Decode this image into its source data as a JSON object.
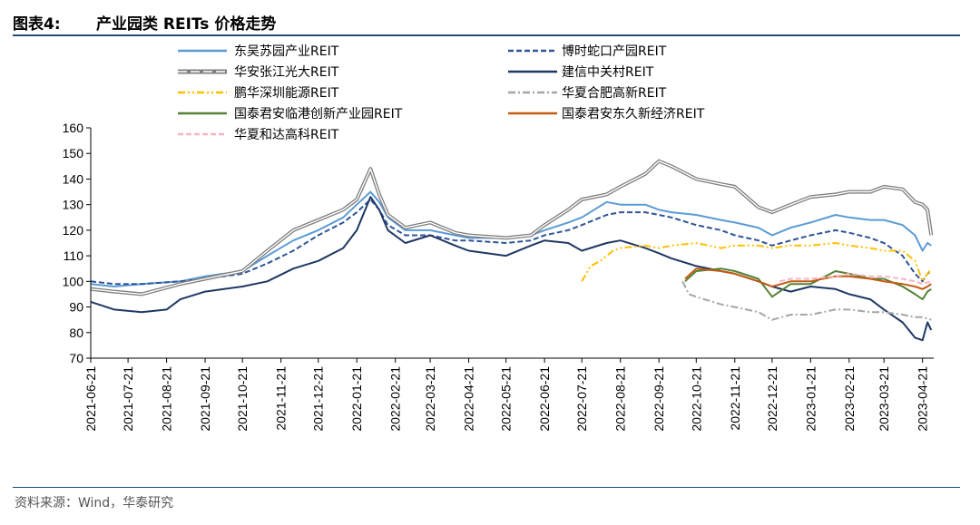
{
  "header": {
    "figure_label": "图表4:",
    "title": "产业园类 REITs 价格走势"
  },
  "footer": {
    "source": "资料来源：Wind，华泰研究"
  },
  "chart_data": {
    "type": "line",
    "ylim": [
      70,
      160
    ],
    "yticks": [
      70,
      80,
      90,
      100,
      110,
      120,
      130,
      140,
      150,
      160
    ],
    "xlim": [
      "2021-06-21",
      "2023-04-30"
    ],
    "xticks": [
      "2021-06-21",
      "2021-07-21",
      "2021-08-21",
      "2021-09-21",
      "2021-10-21",
      "2021-11-21",
      "2021-12-21",
      "2022-01-21",
      "2022-02-21",
      "2022-03-21",
      "2022-04-21",
      "2022-05-21",
      "2022-06-21",
      "2022-07-21",
      "2022-08-21",
      "2022-09-21",
      "2022-10-21",
      "2022-11-21",
      "2022-12-21",
      "2023-01-21",
      "2023-02-21",
      "2023-03-21",
      "2023-04-21"
    ],
    "grid": false,
    "legend_position": "top",
    "series": [
      {
        "name": "东吴苏园产业REIT",
        "color": "#5b9bd5",
        "style": "solid",
        "points": [
          [
            "2021-06-21",
            99
          ],
          [
            "2021-07-10",
            98
          ],
          [
            "2021-08-01",
            99
          ],
          [
            "2021-09-01",
            100
          ],
          [
            "2021-09-21",
            102
          ],
          [
            "2021-10-21",
            104
          ],
          [
            "2021-11-10",
            110
          ],
          [
            "2021-12-01",
            116
          ],
          [
            "2021-12-21",
            120
          ],
          [
            "2022-01-10",
            125
          ],
          [
            "2022-01-21",
            130
          ],
          [
            "2022-02-01",
            135
          ],
          [
            "2022-02-08",
            131
          ],
          [
            "2022-02-15",
            125
          ],
          [
            "2022-03-01",
            120
          ],
          [
            "2022-03-21",
            120
          ],
          [
            "2022-04-10",
            118
          ],
          [
            "2022-04-21",
            117
          ],
          [
            "2022-05-21",
            117
          ],
          [
            "2022-06-10",
            118
          ],
          [
            "2022-06-21",
            120
          ],
          [
            "2022-07-10",
            123
          ],
          [
            "2022-07-21",
            125
          ],
          [
            "2022-08-10",
            131
          ],
          [
            "2022-08-21",
            130
          ],
          [
            "2022-09-10",
            130
          ],
          [
            "2022-09-21",
            128
          ],
          [
            "2022-10-01",
            127
          ],
          [
            "2022-10-21",
            126
          ],
          [
            "2022-11-10",
            124
          ],
          [
            "2022-11-21",
            123
          ],
          [
            "2022-12-10",
            121
          ],
          [
            "2022-12-21",
            118
          ],
          [
            "2023-01-05",
            121
          ],
          [
            "2023-01-21",
            123
          ],
          [
            "2023-02-10",
            126
          ],
          [
            "2023-02-21",
            125
          ],
          [
            "2023-03-10",
            124
          ],
          [
            "2023-03-21",
            124
          ],
          [
            "2023-04-05",
            122
          ],
          [
            "2023-04-15",
            118
          ],
          [
            "2023-04-21",
            112
          ],
          [
            "2023-04-25",
            115
          ],
          [
            "2023-04-28",
            114
          ]
        ]
      },
      {
        "name": "博时蛇口产园REIT",
        "color": "#2f5597",
        "style": "dashed",
        "points": [
          [
            "2021-06-21",
            100
          ],
          [
            "2021-07-10",
            99
          ],
          [
            "2021-08-01",
            99
          ],
          [
            "2021-09-01",
            100
          ],
          [
            "2021-09-21",
            101
          ],
          [
            "2021-10-21",
            103
          ],
          [
            "2021-11-10",
            107
          ],
          [
            "2021-12-01",
            112
          ],
          [
            "2021-12-21",
            118
          ],
          [
            "2022-01-10",
            123
          ],
          [
            "2022-01-21",
            127
          ],
          [
            "2022-02-01",
            132
          ],
          [
            "2022-02-08",
            128
          ],
          [
            "2022-02-15",
            122
          ],
          [
            "2022-03-01",
            118
          ],
          [
            "2022-03-21",
            118
          ],
          [
            "2022-04-10",
            116
          ],
          [
            "2022-04-21",
            116
          ],
          [
            "2022-05-21",
            115
          ],
          [
            "2022-06-10",
            116
          ],
          [
            "2022-06-21",
            118
          ],
          [
            "2022-07-10",
            120
          ],
          [
            "2022-07-21",
            122
          ],
          [
            "2022-08-10",
            126
          ],
          [
            "2022-08-21",
            127
          ],
          [
            "2022-09-10",
            127
          ],
          [
            "2022-09-21",
            126
          ],
          [
            "2022-10-01",
            125
          ],
          [
            "2022-10-21",
            122
          ],
          [
            "2022-11-10",
            120
          ],
          [
            "2022-11-21",
            118
          ],
          [
            "2022-12-10",
            116
          ],
          [
            "2022-12-21",
            114
          ],
          [
            "2023-01-05",
            116
          ],
          [
            "2023-01-21",
            118
          ],
          [
            "2023-02-10",
            120
          ],
          [
            "2023-02-21",
            119
          ],
          [
            "2023-03-10",
            117
          ],
          [
            "2023-03-21",
            115
          ],
          [
            "2023-04-05",
            110
          ],
          [
            "2023-04-15",
            103
          ],
          [
            "2023-04-21",
            100
          ],
          [
            "2023-04-25",
            103
          ],
          [
            "2023-04-28",
            104
          ]
        ]
      },
      {
        "name": "华安张江光大REIT",
        "color": "#7f7f7f",
        "style": "double",
        "points": [
          [
            "2021-06-21",
            97
          ],
          [
            "2021-07-10",
            96
          ],
          [
            "2021-08-01",
            95
          ],
          [
            "2021-09-01",
            99
          ],
          [
            "2021-09-21",
            101
          ],
          [
            "2021-10-21",
            104
          ],
          [
            "2021-11-10",
            112
          ],
          [
            "2021-12-01",
            120
          ],
          [
            "2021-12-21",
            124
          ],
          [
            "2022-01-10",
            128
          ],
          [
            "2022-01-21",
            132
          ],
          [
            "2022-02-01",
            144
          ],
          [
            "2022-02-08",
            134
          ],
          [
            "2022-02-15",
            126
          ],
          [
            "2022-03-01",
            121
          ],
          [
            "2022-03-21",
            123
          ],
          [
            "2022-04-10",
            119
          ],
          [
            "2022-04-21",
            118
          ],
          [
            "2022-05-21",
            117
          ],
          [
            "2022-06-10",
            118
          ],
          [
            "2022-06-21",
            122
          ],
          [
            "2022-07-10",
            128
          ],
          [
            "2022-07-21",
            132
          ],
          [
            "2022-08-10",
            134
          ],
          [
            "2022-08-21",
            137
          ],
          [
            "2022-09-10",
            142
          ],
          [
            "2022-09-21",
            147
          ],
          [
            "2022-10-01",
            145
          ],
          [
            "2022-10-21",
            140
          ],
          [
            "2022-11-10",
            138
          ],
          [
            "2022-11-21",
            137
          ],
          [
            "2022-12-10",
            129
          ],
          [
            "2022-12-21",
            127
          ],
          [
            "2023-01-05",
            130
          ],
          [
            "2023-01-21",
            133
          ],
          [
            "2023-02-10",
            134
          ],
          [
            "2023-02-21",
            135
          ],
          [
            "2023-03-10",
            135
          ],
          [
            "2023-03-21",
            137
          ],
          [
            "2023-04-05",
            136
          ],
          [
            "2023-04-15",
            131
          ],
          [
            "2023-04-21",
            130
          ],
          [
            "2023-04-25",
            128
          ],
          [
            "2023-04-28",
            118
          ]
        ]
      },
      {
        "name": "建信中关村REIT",
        "color": "#1f3864",
        "style": "solid",
        "points": [
          [
            "2021-06-21",
            92
          ],
          [
            "2021-07-10",
            89
          ],
          [
            "2021-08-01",
            88
          ],
          [
            "2021-08-21",
            89
          ],
          [
            "2021-09-01",
            93
          ],
          [
            "2021-09-21",
            96
          ],
          [
            "2021-10-21",
            98
          ],
          [
            "2021-11-10",
            100
          ],
          [
            "2021-12-01",
            105
          ],
          [
            "2021-12-21",
            108
          ],
          [
            "2022-01-10",
            113
          ],
          [
            "2022-01-21",
            120
          ],
          [
            "2022-02-01",
            133
          ],
          [
            "2022-02-08",
            128
          ],
          [
            "2022-02-15",
            120
          ],
          [
            "2022-03-01",
            115
          ],
          [
            "2022-03-21",
            118
          ],
          [
            "2022-04-10",
            114
          ],
          [
            "2022-04-21",
            112
          ],
          [
            "2022-05-21",
            110
          ],
          [
            "2022-06-10",
            114
          ],
          [
            "2022-06-21",
            116
          ],
          [
            "2022-07-10",
            115
          ],
          [
            "2022-07-21",
            112
          ],
          [
            "2022-08-10",
            115
          ],
          [
            "2022-08-21",
            116
          ],
          [
            "2022-09-10",
            113
          ],
          [
            "2022-09-21",
            111
          ],
          [
            "2022-10-01",
            109
          ],
          [
            "2022-10-21",
            106
          ],
          [
            "2022-11-10",
            104
          ],
          [
            "2022-11-21",
            103
          ],
          [
            "2022-12-10",
            100
          ],
          [
            "2022-12-21",
            98
          ],
          [
            "2023-01-05",
            96
          ],
          [
            "2023-01-21",
            98
          ],
          [
            "2023-02-10",
            97
          ],
          [
            "2023-02-21",
            95
          ],
          [
            "2023-03-10",
            93
          ],
          [
            "2023-03-21",
            89
          ],
          [
            "2023-04-05",
            84
          ],
          [
            "2023-04-15",
            78
          ],
          [
            "2023-04-21",
            77
          ],
          [
            "2023-04-25",
            84
          ],
          [
            "2023-04-28",
            81
          ]
        ]
      },
      {
        "name": "鹏华深圳能源REIT",
        "color": "#ffc000",
        "style": "dashdotdot",
        "points": [
          [
            "2022-07-21",
            100
          ],
          [
            "2022-07-28",
            106
          ],
          [
            "2022-08-05",
            108
          ],
          [
            "2022-08-15",
            112
          ],
          [
            "2022-08-21",
            113
          ],
          [
            "2022-09-10",
            114
          ],
          [
            "2022-09-21",
            113
          ],
          [
            "2022-10-01",
            114
          ],
          [
            "2022-10-21",
            115
          ],
          [
            "2022-11-10",
            113
          ],
          [
            "2022-11-21",
            114
          ],
          [
            "2022-12-10",
            114
          ],
          [
            "2022-12-21",
            113
          ],
          [
            "2023-01-05",
            114
          ],
          [
            "2023-01-21",
            114
          ],
          [
            "2023-02-10",
            115
          ],
          [
            "2023-02-21",
            114
          ],
          [
            "2023-03-10",
            113
          ],
          [
            "2023-03-21",
            112
          ],
          [
            "2023-04-05",
            112
          ],
          [
            "2023-04-15",
            108
          ],
          [
            "2023-04-21",
            100
          ],
          [
            "2023-04-25",
            103
          ],
          [
            "2023-04-28",
            105
          ]
        ]
      },
      {
        "name": "华夏合肥高新REIT",
        "color": "#a6a6a6",
        "style": "dashdot",
        "points": [
          [
            "2022-10-10",
            100
          ],
          [
            "2022-10-15",
            95
          ],
          [
            "2022-10-21",
            94
          ],
          [
            "2022-11-10",
            91
          ],
          [
            "2022-11-21",
            90
          ],
          [
            "2022-12-10",
            88
          ],
          [
            "2022-12-21",
            85
          ],
          [
            "2023-01-05",
            87
          ],
          [
            "2023-01-21",
            87
          ],
          [
            "2023-02-10",
            89
          ],
          [
            "2023-02-21",
            89
          ],
          [
            "2023-03-10",
            88
          ],
          [
            "2023-03-21",
            88
          ],
          [
            "2023-04-05",
            87
          ],
          [
            "2023-04-15",
            86
          ],
          [
            "2023-04-21",
            86
          ],
          [
            "2023-04-28",
            85
          ]
        ]
      },
      {
        "name": "国泰君安临港创新产业园REIT",
        "color": "#548235",
        "style": "solid",
        "points": [
          [
            "2022-10-12",
            100
          ],
          [
            "2022-10-21",
            104
          ],
          [
            "2022-11-10",
            105
          ],
          [
            "2022-11-21",
            104
          ],
          [
            "2022-12-10",
            101
          ],
          [
            "2022-12-21",
            94
          ],
          [
            "2023-01-05",
            99
          ],
          [
            "2023-01-21",
            99
          ],
          [
            "2023-02-10",
            104
          ],
          [
            "2023-02-21",
            103
          ],
          [
            "2023-03-10",
            101
          ],
          [
            "2023-03-21",
            101
          ],
          [
            "2023-04-05",
            98
          ],
          [
            "2023-04-15",
            95
          ],
          [
            "2023-04-21",
            93
          ],
          [
            "2023-04-25",
            96
          ],
          [
            "2023-04-28",
            97
          ]
        ]
      },
      {
        "name": "国泰君安东久新经济REIT",
        "color": "#c55a11",
        "style": "solid",
        "points": [
          [
            "2022-10-12",
            101
          ],
          [
            "2022-10-21",
            105
          ],
          [
            "2022-11-10",
            104
          ],
          [
            "2022-11-21",
            103
          ],
          [
            "2022-12-10",
            100
          ],
          [
            "2022-12-21",
            98
          ],
          [
            "2023-01-05",
            100
          ],
          [
            "2023-01-21",
            100
          ],
          [
            "2023-02-10",
            102
          ],
          [
            "2023-02-21",
            102
          ],
          [
            "2023-03-10",
            101
          ],
          [
            "2023-03-21",
            100
          ],
          [
            "2023-04-05",
            99
          ],
          [
            "2023-04-15",
            98
          ],
          [
            "2023-04-21",
            97
          ],
          [
            "2023-04-25",
            98
          ],
          [
            "2023-04-28",
            99
          ]
        ]
      },
      {
        "name": "华夏和达高科REIT",
        "color": "#f4b6c2",
        "style": "dashed",
        "points": [
          [
            "2022-12-27",
            100
          ],
          [
            "2023-01-05",
            101
          ],
          [
            "2023-01-21",
            101
          ],
          [
            "2023-02-10",
            102
          ],
          [
            "2023-02-21",
            103
          ],
          [
            "2023-03-10",
            102
          ],
          [
            "2023-03-21",
            102
          ],
          [
            "2023-04-05",
            101
          ],
          [
            "2023-04-15",
            100
          ],
          [
            "2023-04-21",
            99
          ],
          [
            "2023-04-28",
            100
          ]
        ]
      }
    ]
  }
}
